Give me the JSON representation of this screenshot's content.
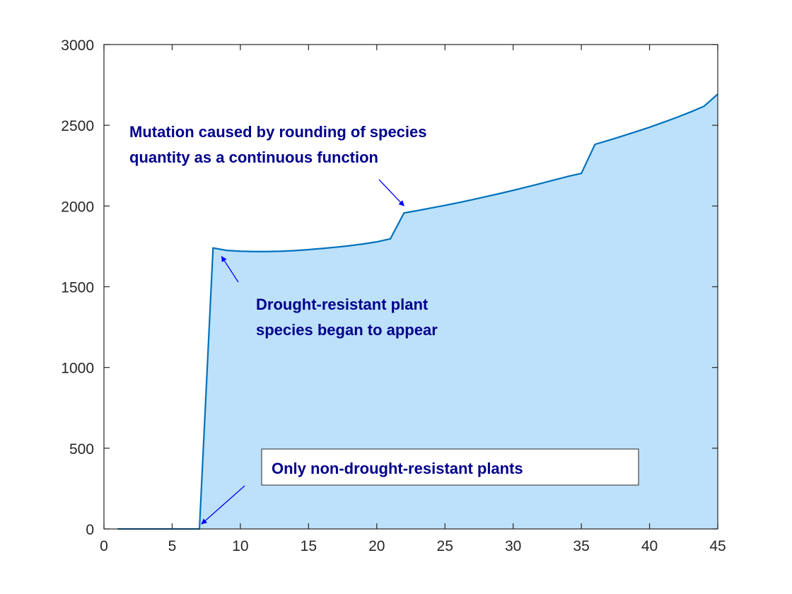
{
  "chart_data": {
    "type": "area",
    "title": "",
    "xlabel": "",
    "ylabel": "",
    "xlim": [
      0,
      45
    ],
    "ylim": [
      0,
      3000
    ],
    "xticks": [
      0,
      5,
      10,
      15,
      20,
      25,
      30,
      35,
      40,
      45
    ],
    "yticks": [
      0,
      500,
      1000,
      1500,
      2000,
      2500,
      3000
    ],
    "grid": false,
    "legend": "none",
    "colors": {
      "fill": "#bde1fa",
      "line": "#0072bd",
      "annotation": "#00008b",
      "arrow": "#0000ff"
    },
    "series": [
      {
        "x": [
          1,
          2,
          3,
          4,
          5,
          6,
          7,
          8,
          9,
          10,
          11,
          12,
          13,
          14,
          15,
          16,
          17,
          18,
          19,
          20,
          21,
          22,
          23,
          24,
          25,
          26,
          27,
          28,
          29,
          30,
          31,
          32,
          33,
          34,
          35,
          36,
          37,
          38,
          39,
          40,
          41,
          42,
          43,
          44,
          45
        ],
        "y": [
          0,
          0,
          0,
          0,
          0,
          0,
          0,
          1740,
          1725,
          1720,
          1718,
          1718,
          1720,
          1724,
          1730,
          1737,
          1745,
          1754,
          1765,
          1778,
          1797,
          1957,
          1972,
          1988,
          2004,
          2021,
          2039,
          2058,
          2077,
          2097,
          2118,
          2139,
          2161,
          2183,
          2202,
          2382,
          2407,
          2433,
          2460,
          2488,
          2518,
          2549,
          2582,
          2618,
          2693
        ]
      }
    ],
    "annotations": [
      {
        "lines": [
          "Mutation caused by rounding of species",
          "quantity as a continuous function"
        ],
        "arrow_to": [
          22,
          1957
        ]
      },
      {
        "lines": [
          "Drought-resistant plant",
          "species began to appear"
        ],
        "arrow_to": [
          8,
          1740
        ]
      },
      {
        "lines": [
          "Only non-drought-resistant plants"
        ],
        "arrow_to": [
          7,
          0
        ],
        "boxed": true
      }
    ]
  }
}
